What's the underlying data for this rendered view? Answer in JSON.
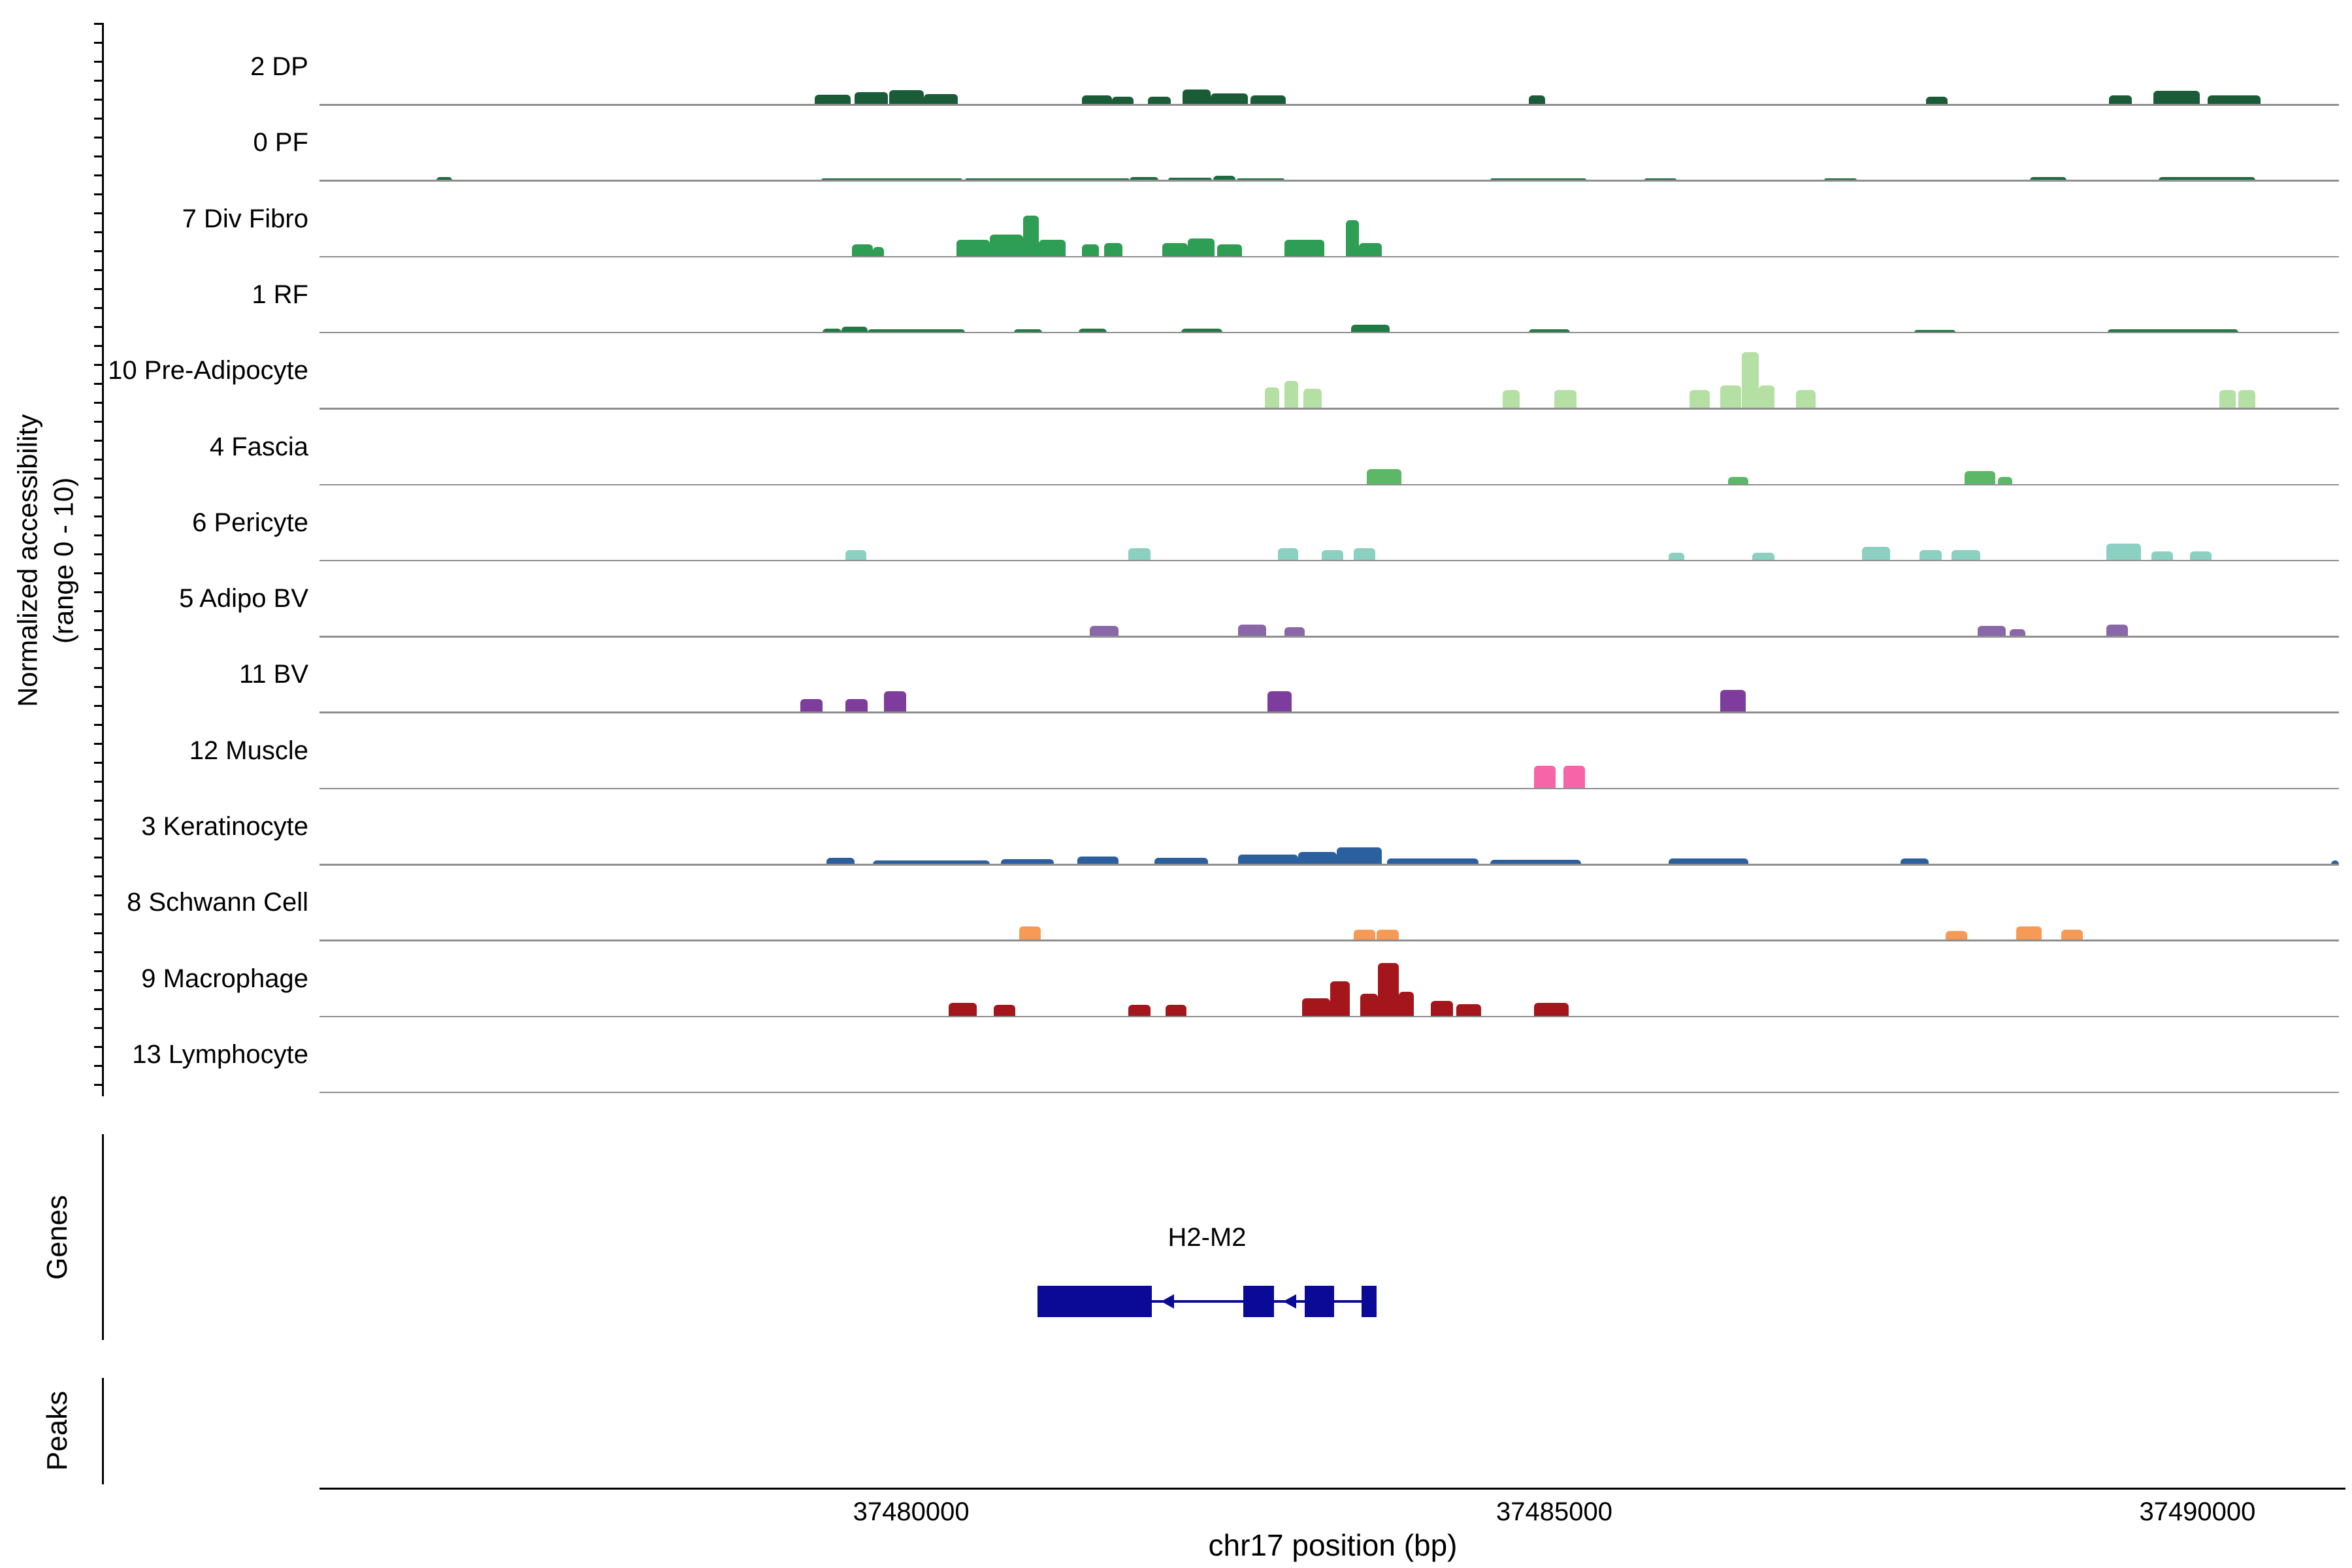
{
  "chart_data": {
    "type": "area",
    "title": "",
    "xlabel": "chr17 position (bp)",
    "ylabel_line1": "Normalized accessibility",
    "ylabel_line2": "(range 0 - 10)",
    "x_domain": [
      37475400,
      37491100
    ],
    "x_ticks": [
      {
        "bp": 37480000,
        "label": "37480000"
      },
      {
        "bp": 37485000,
        "label": "37485000"
      },
      {
        "bp": 37490000,
        "label": "37490000"
      }
    ],
    "y_range_per_track": [
      0,
      10
    ],
    "sections": {
      "genes": "Genes",
      "peaks": "Peaks"
    },
    "tracks": [
      {
        "label": "2 DP",
        "color": "#1a5c38",
        "segments": [
          [
            37479250,
            37479530,
            1.3
          ],
          [
            37479560,
            37479820,
            1.6
          ],
          [
            37479830,
            37480100,
            1.9
          ],
          [
            37480100,
            37480360,
            1.4
          ],
          [
            37481330,
            37481560,
            1.2
          ],
          [
            37481560,
            37481730,
            1.0
          ],
          [
            37481840,
            37482020,
            1.0
          ],
          [
            37482110,
            37482330,
            2.0
          ],
          [
            37482330,
            37482620,
            1.5
          ],
          [
            37482640,
            37482910,
            1.2
          ],
          [
            37484800,
            37484930,
            1.2
          ],
          [
            37487890,
            37488060,
            1.0
          ],
          [
            37489310,
            37489490,
            1.2
          ],
          [
            37489660,
            37490020,
            1.8
          ],
          [
            37490080,
            37490490,
            1.2
          ]
        ]
      },
      {
        "label": "0 PF",
        "color": "#1c6b40",
        "segments": [
          [
            37476310,
            37476430,
            0.5
          ],
          [
            37479300,
            37480400,
            0.3
          ],
          [
            37480420,
            37481700,
            0.25
          ],
          [
            37481700,
            37481920,
            0.5
          ],
          [
            37482000,
            37482340,
            0.35
          ],
          [
            37482350,
            37482520,
            0.6
          ],
          [
            37482530,
            37482900,
            0.3
          ],
          [
            37484500,
            37485250,
            0.3
          ],
          [
            37485700,
            37485950,
            0.3
          ],
          [
            37487100,
            37487350,
            0.3
          ],
          [
            37488700,
            37488980,
            0.45
          ],
          [
            37489700,
            37490450,
            0.45
          ]
        ]
      },
      {
        "label": "7 Div Fibro",
        "color": "#2f9e55",
        "segments": [
          [
            37479540,
            37479700,
            1.6
          ],
          [
            37479700,
            37479790,
            1.3
          ],
          [
            37480350,
            37480610,
            2.2
          ],
          [
            37480610,
            37480870,
            2.9
          ],
          [
            37480870,
            37480990,
            5.4
          ],
          [
            37480990,
            37481200,
            2.2
          ],
          [
            37481330,
            37481460,
            1.6
          ],
          [
            37481500,
            37481640,
            1.8
          ],
          [
            37481950,
            37482150,
            1.8
          ],
          [
            37482150,
            37482360,
            2.4
          ],
          [
            37482380,
            37482570,
            1.6
          ],
          [
            37482900,
            37483210,
            2.2
          ],
          [
            37483380,
            37483480,
            4.8
          ],
          [
            37483480,
            37483660,
            1.8
          ]
        ]
      },
      {
        "label": "1 RF",
        "color": "#1f7a44",
        "segments": [
          [
            37479310,
            37479460,
            0.5
          ],
          [
            37479460,
            37479660,
            0.8
          ],
          [
            37479660,
            37480420,
            0.4
          ],
          [
            37480800,
            37481020,
            0.4
          ],
          [
            37481300,
            37481520,
            0.5
          ],
          [
            37482100,
            37482420,
            0.5
          ],
          [
            37483420,
            37483720,
            1.0
          ],
          [
            37484800,
            37485120,
            0.4
          ],
          [
            37487800,
            37488120,
            0.3
          ],
          [
            37489300,
            37490320,
            0.4
          ]
        ]
      },
      {
        "label": "10 Pre-Adipocyte",
        "color": "#b5e0a3",
        "segments": [
          [
            37482750,
            37482860,
            2.8
          ],
          [
            37482900,
            37483010,
            3.6
          ],
          [
            37483050,
            37483190,
            2.6
          ],
          [
            37484600,
            37484730,
            2.4
          ],
          [
            37485000,
            37485170,
            2.4
          ],
          [
            37486050,
            37486210,
            2.4
          ],
          [
            37486290,
            37486450,
            3.0
          ],
          [
            37486460,
            37486590,
            7.4
          ],
          [
            37486590,
            37486710,
            3.0
          ],
          [
            37486880,
            37487030,
            2.4
          ],
          [
            37490170,
            37490300,
            2.4
          ],
          [
            37490320,
            37490450,
            2.4
          ]
        ]
      },
      {
        "label": "4 Fascia",
        "color": "#5cb867",
        "segments": [
          [
            37483540,
            37483810,
            2.0
          ],
          [
            37486350,
            37486510,
            1.0
          ],
          [
            37488190,
            37488430,
            1.8
          ],
          [
            37488450,
            37488560,
            1.0
          ]
        ]
      },
      {
        "label": "6 Pericyte",
        "color": "#8bd0c0",
        "segments": [
          [
            37479490,
            37479650,
            1.4
          ],
          [
            37481690,
            37481860,
            1.6
          ],
          [
            37482850,
            37483010,
            1.6
          ],
          [
            37483190,
            37483360,
            1.4
          ],
          [
            37483440,
            37483610,
            1.6
          ],
          [
            37485890,
            37486010,
            1.0
          ],
          [
            37486540,
            37486710,
            1.0
          ],
          [
            37487390,
            37487610,
            1.8
          ],
          [
            37487840,
            37488010,
            1.4
          ],
          [
            37488090,
            37488310,
            1.4
          ],
          [
            37489290,
            37489560,
            2.2
          ],
          [
            37489640,
            37489810,
            1.2
          ],
          [
            37489940,
            37490110,
            1.2
          ]
        ]
      },
      {
        "label": "5 Adipo BV",
        "color": "#8a67a8",
        "segments": [
          [
            37481390,
            37481610,
            1.4
          ],
          [
            37482540,
            37482760,
            1.6
          ],
          [
            37482900,
            37483060,
            1.2
          ],
          [
            37488290,
            37488510,
            1.4
          ],
          [
            37488540,
            37488660,
            1.0
          ],
          [
            37489290,
            37489460,
            1.6
          ]
        ]
      },
      {
        "label": "11 BV",
        "color": "#7e3d9c",
        "segments": [
          [
            37479140,
            37479310,
            1.8
          ],
          [
            37479490,
            37479660,
            1.8
          ],
          [
            37479790,
            37479960,
            2.8
          ],
          [
            37482770,
            37482960,
            2.8
          ],
          [
            37486290,
            37486490,
            3.0
          ]
        ]
      },
      {
        "label": "12 Muscle",
        "color": "#f565a7",
        "segments": [
          [
            37484840,
            37485010,
            3.0
          ],
          [
            37485070,
            37485240,
            3.0
          ]
        ]
      },
      {
        "label": "3 Keratinocyte",
        "color": "#2c5f9e",
        "segments": [
          [
            37479340,
            37479560,
            0.9
          ],
          [
            37479700,
            37480610,
            0.5
          ],
          [
            37480700,
            37481110,
            0.7
          ],
          [
            37481290,
            37481610,
            1.0
          ],
          [
            37481890,
            37482310,
            0.9
          ],
          [
            37482540,
            37483010,
            1.3
          ],
          [
            37483010,
            37483310,
            1.6
          ],
          [
            37483310,
            37483660,
            2.2
          ],
          [
            37483700,
            37484410,
            0.8
          ],
          [
            37484500,
            37485210,
            0.6
          ],
          [
            37485890,
            37486510,
            0.8
          ],
          [
            37487690,
            37487910,
            0.8
          ],
          [
            37491040,
            37491100,
            0.5
          ]
        ]
      },
      {
        "label": "8 Schwann Cell",
        "color": "#f79a55",
        "segments": [
          [
            37480840,
            37481010,
            1.8
          ],
          [
            37483440,
            37483610,
            1.4
          ],
          [
            37483620,
            37483790,
            1.4
          ],
          [
            37488040,
            37488210,
            1.2
          ],
          [
            37488590,
            37488790,
            1.8
          ],
          [
            37488940,
            37489110,
            1.4
          ]
        ]
      },
      {
        "label": "9 Macrophage",
        "color": "#a4161c",
        "segments": [
          [
            37480290,
            37480510,
            1.8
          ],
          [
            37480640,
            37480810,
            1.5
          ],
          [
            37481690,
            37481860,
            1.5
          ],
          [
            37481980,
            37482140,
            1.5
          ],
          [
            37483040,
            37483260,
            2.4
          ],
          [
            37483260,
            37483410,
            4.6
          ],
          [
            37483490,
            37483630,
            3.0
          ],
          [
            37483630,
            37483790,
            7.0
          ],
          [
            37483790,
            37483910,
            3.2
          ],
          [
            37484040,
            37484210,
            2.0
          ],
          [
            37484240,
            37484430,
            1.6
          ],
          [
            37484840,
            37485110,
            1.8
          ]
        ]
      },
      {
        "label": "13 Lymphocyte",
        "color": "#8c8c8c",
        "segments": []
      }
    ],
    "genes": [
      {
        "name": "H2-M2",
        "strand": "-",
        "start": 37480980,
        "end": 37483620,
        "color": "#0a0a96",
        "exons": [
          [
            37480980,
            37481870
          ],
          [
            37482580,
            37482820
          ],
          [
            37483060,
            37483290
          ],
          [
            37483500,
            37483620
          ]
        ],
        "arrow_positions": [
          37481990,
          37482938
        ]
      }
    ],
    "peaks": []
  }
}
